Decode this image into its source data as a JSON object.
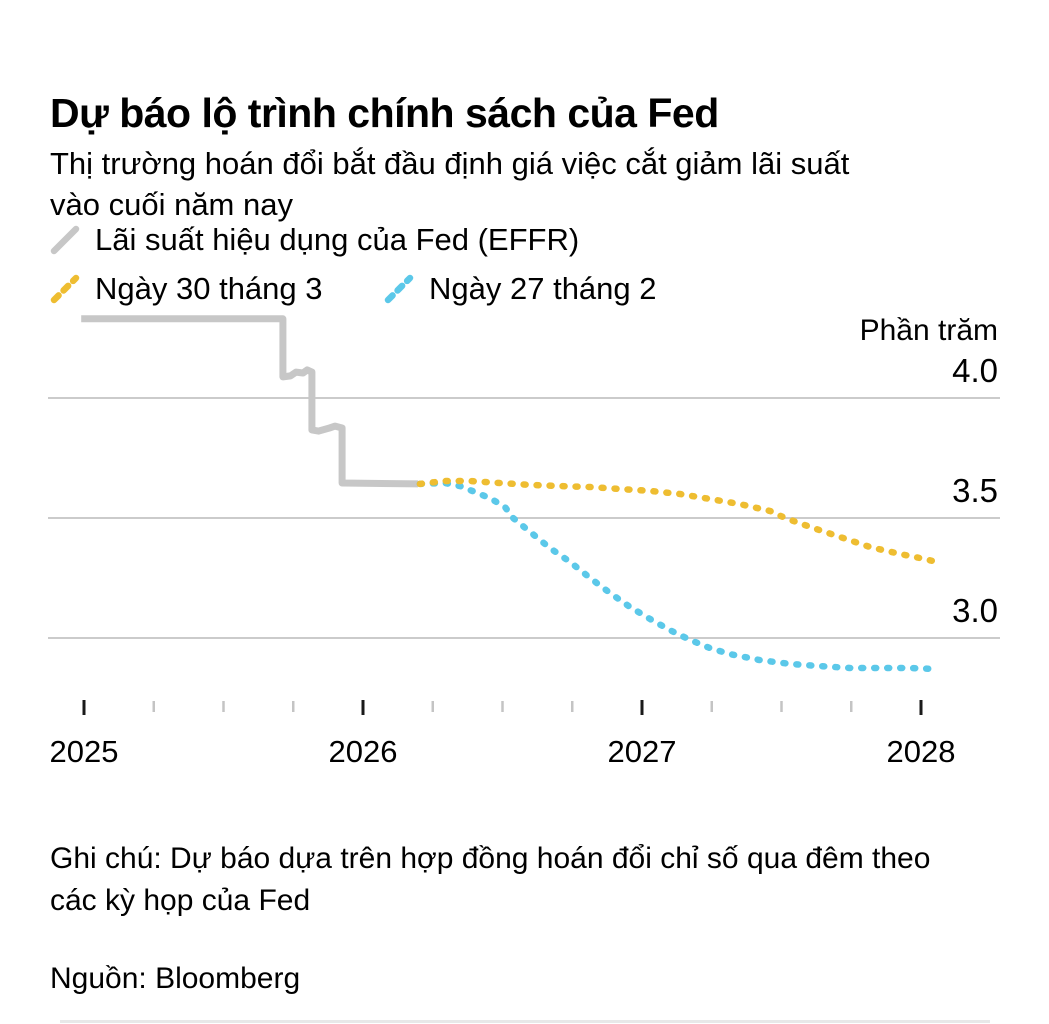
{
  "header": {
    "title": "Dự báo lộ trình chính sách của Fed",
    "subtitle_line1": "Thị trường hoán đổi bắt đầu định giá việc cắt giảm lãi suất",
    "subtitle_line2": "vào cuối năm nay"
  },
  "legend": {
    "items": [
      {
        "key": "effr",
        "label": "Lãi suất hiệu dụng của Fed (EFFR)",
        "color": "#c7c7c7",
        "style": "solid"
      },
      {
        "key": "mar30",
        "label": "Ngày 30 tháng 3",
        "color": "#eebd31",
        "style": "dotted"
      },
      {
        "key": "feb27",
        "label": "Ngày 27 tháng 2",
        "color": "#5bc8e9",
        "style": "dotted"
      }
    ]
  },
  "chart_data": {
    "type": "line",
    "unit_label": "Phần trăm",
    "x_range": [
      2025,
      2028.3
    ],
    "grid": "horizontal-only",
    "legend_position": "top-left",
    "yticks": [
      {
        "value": 4.0,
        "label": "4.0"
      },
      {
        "value": 3.5,
        "label": "3.5"
      },
      {
        "value": 3.0,
        "label": "3.0"
      }
    ],
    "xticks": [
      {
        "value": 2025,
        "label": "2025"
      },
      {
        "value": 2026,
        "label": "2026"
      },
      {
        "value": 2027,
        "label": "2027"
      },
      {
        "value": 2028,
        "label": "2028"
      }
    ],
    "xticks_minor": [
      2025.25,
      2025.5,
      2025.75,
      2026.25,
      2026.5,
      2026.75,
      2027.25,
      2027.5,
      2027.75
    ],
    "series": [
      {
        "key": "effr",
        "name": "Lãi suất hiệu dụng của Fed (EFFR)",
        "color": "#c7c7c7",
        "style": "solid",
        "points": [
          [
            2024.99,
            4.33
          ],
          [
            2025.713,
            4.33
          ],
          [
            2025.713,
            4.088
          ],
          [
            2025.74,
            4.092
          ],
          [
            2025.76,
            4.108
          ],
          [
            2025.785,
            4.104
          ],
          [
            2025.8,
            4.117
          ],
          [
            2025.817,
            4.108
          ],
          [
            2025.817,
            3.867
          ],
          [
            2025.84,
            3.862
          ],
          [
            2025.88,
            3.875
          ],
          [
            2025.9,
            3.883
          ],
          [
            2025.925,
            3.875
          ],
          [
            2025.925,
            3.646
          ],
          [
            2026.197,
            3.642
          ]
        ]
      },
      {
        "key": "feb27",
        "name": "Ngày 27 tháng 2",
        "color": "#5bc8e9",
        "style": "dotted",
        "points": [
          [
            2026.204,
            3.642
          ],
          [
            2026.294,
            3.646
          ],
          [
            2026.348,
            3.633
          ],
          [
            2026.402,
            3.608
          ],
          [
            2026.455,
            3.583
          ],
          [
            2026.509,
            3.546
          ],
          [
            2026.538,
            3.5
          ],
          [
            2026.599,
            3.442
          ],
          [
            2026.67,
            3.375
          ],
          [
            2026.742,
            3.317
          ],
          [
            2026.814,
            3.25
          ],
          [
            2026.885,
            3.188
          ],
          [
            2026.957,
            3.129
          ],
          [
            2027.029,
            3.079
          ],
          [
            2027.1,
            3.033
          ],
          [
            2027.172,
            2.992
          ],
          [
            2027.244,
            2.958
          ],
          [
            2027.315,
            2.933
          ],
          [
            2027.423,
            2.908
          ],
          [
            2027.53,
            2.892
          ],
          [
            2027.638,
            2.883
          ],
          [
            2027.746,
            2.875
          ],
          [
            2027.853,
            2.875
          ],
          [
            2027.961,
            2.875
          ],
          [
            2028.05,
            2.871
          ]
        ]
      },
      {
        "key": "mar30",
        "name": "Ngày 30 tháng 3",
        "color": "#eebd31",
        "style": "dotted",
        "points": [
          [
            2026.204,
            3.642
          ],
          [
            2026.294,
            3.654
          ],
          [
            2026.384,
            3.654
          ],
          [
            2026.491,
            3.646
          ],
          [
            2026.599,
            3.638
          ],
          [
            2026.706,
            3.633
          ],
          [
            2026.814,
            3.629
          ],
          [
            2026.921,
            3.621
          ],
          [
            2027.029,
            3.613
          ],
          [
            2027.136,
            3.6
          ],
          [
            2027.244,
            3.579
          ],
          [
            2027.351,
            3.558
          ],
          [
            2027.459,
            3.529
          ],
          [
            2027.513,
            3.5
          ],
          [
            2027.602,
            3.463
          ],
          [
            2027.71,
            3.421
          ],
          [
            2027.817,
            3.379
          ],
          [
            2027.925,
            3.35
          ],
          [
            2027.997,
            3.333
          ],
          [
            2028.057,
            3.317
          ]
        ]
      }
    ]
  },
  "footer": {
    "note_line1": "Ghi chú: Dự báo dựa trên hợp đồng hoán đổi chỉ số qua đêm theo",
    "note_line2": "các kỳ họp của Fed",
    "source": "Nguồn: Bloomberg"
  }
}
